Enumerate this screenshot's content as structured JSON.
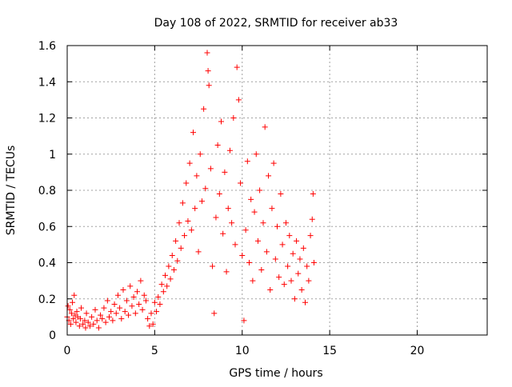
{
  "chart_data": {
    "type": "scatter",
    "title": "Day 108 of 2022, SRMTID for receiver ab33",
    "xlabel": "GPS time / hours",
    "ylabel": "SRMTID / TECUs",
    "xlim": [
      0,
      24
    ],
    "ylim": [
      0,
      1.6
    ],
    "xticks": [
      0,
      5,
      10,
      15,
      20
    ],
    "xtick_labels": [
      "0",
      "5",
      "10",
      "15",
      "20"
    ],
    "yticks": [
      0,
      0.2,
      0.4,
      0.6,
      0.8,
      1.0,
      1.2,
      1.4,
      1.6
    ],
    "ytick_labels": [
      "0",
      "0.2",
      "0.4",
      "0.6",
      "0.8",
      "1",
      "1.2",
      "1.4",
      "1.6"
    ],
    "grid": true,
    "marker": "plus",
    "series": [
      {
        "name": "ab33",
        "color": "#ff0000",
        "points": [
          [
            0.0,
            0.1
          ],
          [
            0.05,
            0.16
          ],
          [
            0.1,
            0.08
          ],
          [
            0.15,
            0.14
          ],
          [
            0.2,
            0.06
          ],
          [
            0.25,
            0.12
          ],
          [
            0.3,
            0.18
          ],
          [
            0.35,
            0.09
          ],
          [
            0.4,
            0.22
          ],
          [
            0.45,
            0.11
          ],
          [
            0.5,
            0.07
          ],
          [
            0.55,
            0.13
          ],
          [
            0.6,
            0.1
          ],
          [
            0.7,
            0.05
          ],
          [
            0.75,
            0.09
          ],
          [
            0.8,
            0.15
          ],
          [
            0.9,
            0.06
          ],
          [
            1.0,
            0.08
          ],
          [
            1.05,
            0.04
          ],
          [
            1.1,
            0.12
          ],
          [
            1.2,
            0.07
          ],
          [
            1.3,
            0.05
          ],
          [
            1.4,
            0.1
          ],
          [
            1.5,
            0.06
          ],
          [
            1.6,
            0.14
          ],
          [
            1.7,
            0.08
          ],
          [
            1.8,
            0.04
          ],
          [
            1.9,
            0.11
          ],
          [
            2.0,
            0.09
          ],
          [
            2.1,
            0.15
          ],
          [
            2.2,
            0.07
          ],
          [
            2.3,
            0.19
          ],
          [
            2.4,
            0.1
          ],
          [
            2.5,
            0.13
          ],
          [
            2.6,
            0.08
          ],
          [
            2.7,
            0.17
          ],
          [
            2.8,
            0.12
          ],
          [
            2.9,
            0.22
          ],
          [
            3.0,
            0.15
          ],
          [
            3.1,
            0.09
          ],
          [
            3.2,
            0.25
          ],
          [
            3.3,
            0.13
          ],
          [
            3.4,
            0.19
          ],
          [
            3.5,
            0.11
          ],
          [
            3.6,
            0.27
          ],
          [
            3.7,
            0.16
          ],
          [
            3.8,
            0.21
          ],
          [
            3.9,
            0.12
          ],
          [
            4.0,
            0.24
          ],
          [
            4.1,
            0.17
          ],
          [
            4.2,
            0.3
          ],
          [
            4.3,
            0.14
          ],
          [
            4.4,
            0.22
          ],
          [
            4.5,
            0.19
          ],
          [
            4.6,
            0.09
          ],
          [
            4.7,
            0.05
          ],
          [
            4.8,
            0.12
          ],
          [
            4.9,
            0.06
          ],
          [
            5.0,
            0.18
          ],
          [
            5.1,
            0.13
          ],
          [
            5.2,
            0.21
          ],
          [
            5.3,
            0.17
          ],
          [
            5.4,
            0.28
          ],
          [
            5.5,
            0.24
          ],
          [
            5.6,
            0.33
          ],
          [
            5.7,
            0.27
          ],
          [
            5.8,
            0.38
          ],
          [
            5.9,
            0.31
          ],
          [
            6.0,
            0.44
          ],
          [
            6.1,
            0.36
          ],
          [
            6.2,
            0.52
          ],
          [
            6.3,
            0.41
          ],
          [
            6.4,
            0.62
          ],
          [
            6.5,
            0.48
          ],
          [
            6.6,
            0.73
          ],
          [
            6.7,
            0.55
          ],
          [
            6.8,
            0.84
          ],
          [
            6.9,
            0.63
          ],
          [
            7.0,
            0.95
          ],
          [
            7.1,
            0.58
          ],
          [
            7.2,
            1.12
          ],
          [
            7.3,
            0.7
          ],
          [
            7.4,
            0.88
          ],
          [
            7.5,
            0.46
          ],
          [
            7.6,
            1.0
          ],
          [
            7.7,
            0.74
          ],
          [
            7.8,
            1.25
          ],
          [
            7.9,
            0.81
          ],
          [
            8.0,
            1.56
          ],
          [
            8.05,
            1.46
          ],
          [
            8.1,
            1.38
          ],
          [
            8.2,
            0.92
          ],
          [
            8.3,
            0.38
          ],
          [
            8.4,
            0.12
          ],
          [
            8.5,
            0.65
          ],
          [
            8.6,
            1.05
          ],
          [
            8.7,
            0.78
          ],
          [
            8.8,
            1.18
          ],
          [
            8.9,
            0.56
          ],
          [
            9.0,
            0.9
          ],
          [
            9.1,
            0.35
          ],
          [
            9.2,
            0.7
          ],
          [
            9.3,
            1.02
          ],
          [
            9.4,
            0.62
          ],
          [
            9.5,
            1.2
          ],
          [
            9.6,
            0.5
          ],
          [
            9.7,
            1.48
          ],
          [
            9.8,
            1.3
          ],
          [
            9.9,
            0.84
          ],
          [
            10.0,
            0.44
          ],
          [
            10.1,
            0.08
          ],
          [
            10.2,
            0.58
          ],
          [
            10.3,
            0.96
          ],
          [
            10.4,
            0.4
          ],
          [
            10.5,
            0.75
          ],
          [
            10.6,
            0.3
          ],
          [
            10.7,
            0.68
          ],
          [
            10.8,
            1.0
          ],
          [
            10.9,
            0.52
          ],
          [
            11.0,
            0.8
          ],
          [
            11.1,
            0.36
          ],
          [
            11.2,
            0.62
          ],
          [
            11.3,
            1.15
          ],
          [
            11.4,
            0.46
          ],
          [
            11.5,
            0.88
          ],
          [
            11.6,
            0.25
          ],
          [
            11.7,
            0.7
          ],
          [
            11.8,
            0.95
          ],
          [
            11.9,
            0.42
          ],
          [
            12.0,
            0.6
          ],
          [
            12.1,
            0.32
          ],
          [
            12.2,
            0.78
          ],
          [
            12.3,
            0.5
          ],
          [
            12.4,
            0.28
          ],
          [
            12.5,
            0.62
          ],
          [
            12.6,
            0.38
          ],
          [
            12.7,
            0.55
          ],
          [
            12.8,
            0.3
          ],
          [
            12.9,
            0.45
          ],
          [
            13.0,
            0.2
          ],
          [
            13.1,
            0.52
          ],
          [
            13.2,
            0.34
          ],
          [
            13.3,
            0.42
          ],
          [
            13.4,
            0.25
          ],
          [
            13.5,
            0.48
          ],
          [
            13.6,
            0.18
          ],
          [
            13.7,
            0.38
          ],
          [
            13.8,
            0.3
          ],
          [
            13.9,
            0.55
          ],
          [
            14.0,
            0.64
          ],
          [
            14.05,
            0.78
          ],
          [
            14.1,
            0.4
          ]
        ]
      }
    ]
  }
}
